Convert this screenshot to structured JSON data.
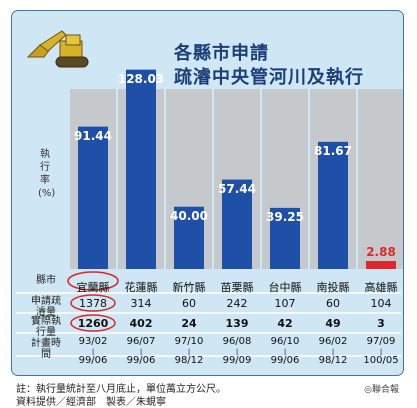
{
  "title_line1": "各縣市申請",
  "title_line2": "疏濬中央管河川及執行",
  "ylabel": "執行率(%)",
  "row_labels": {
    "county": "縣市",
    "applied": "申請疏濬量",
    "executed": "實際執行量",
    "period": "計畫時間"
  },
  "chart_data": {
    "type": "bar",
    "categories": [
      "宜蘭縣",
      "花蓮縣",
      "新竹縣",
      "苗栗縣",
      "台中縣",
      "南投縣",
      "高雄縣"
    ],
    "values": [
      91.44,
      128.03,
      40.0,
      57.44,
      39.25,
      81.67,
      2.88
    ],
    "value_labels": [
      "91.44",
      "128.03",
      "40.00",
      "57.44",
      "39.25",
      "81.67",
      "2.88"
    ],
    "ylabel": "執行率(%)",
    "ylim": [
      0,
      140
    ]
  },
  "table": {
    "applied": [
      "1378",
      "314",
      "60",
      "242",
      "107",
      "60",
      "104"
    ],
    "executed": [
      "1260",
      "402",
      "24",
      "139",
      "42",
      "49",
      "3"
    ],
    "period_start": [
      "93/02",
      "96/07",
      "97/10",
      "96/08",
      "96/10",
      "96/02",
      "97/09"
    ],
    "period_end": [
      "99/06",
      "99/06",
      "98/12",
      "99/09",
      "99/06",
      "98/12",
      "100/05"
    ]
  },
  "notes": {
    "line1": "註：執行量統計至八月底止，單位萬立方公尺。",
    "line2": "資料提供／經濟部　製表／朱蜆寧",
    "credit": "◎聯合報"
  },
  "colors": {
    "panel": "#cfe6f4",
    "bar_blue": "#1f50a8",
    "bar_red": "#e0282c",
    "highlight": "#d42a2a",
    "title": "#1b3d7a"
  }
}
